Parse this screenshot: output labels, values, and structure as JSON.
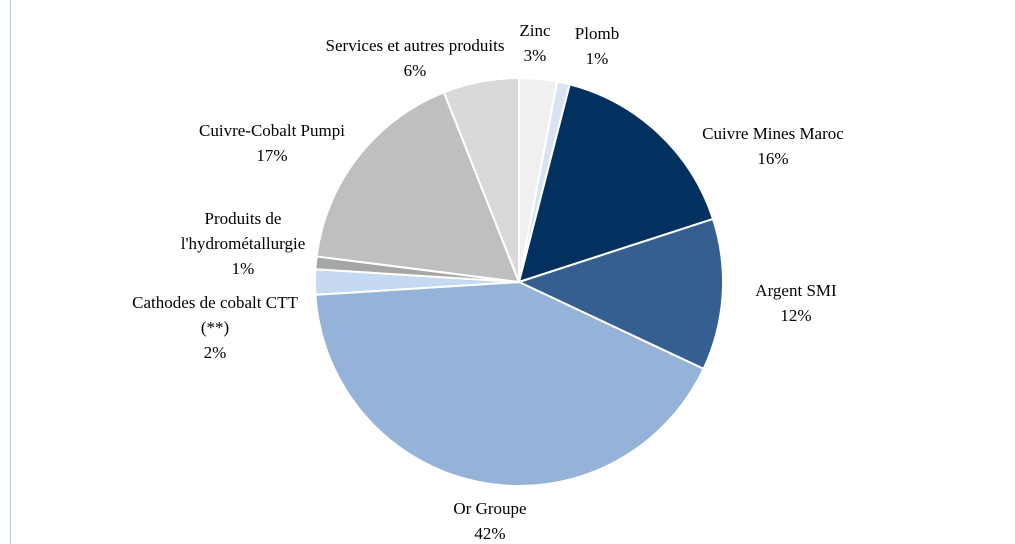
{
  "chart_data": {
    "type": "pie",
    "categories": [
      "Zinc",
      "Plomb",
      "Cuivre Mines Maroc",
      "Argent SMI",
      "Or Groupe",
      "Cathodes de cobalt CTT (**)",
      "Produits de l'hydrométallurgie",
      "Cuivre-Cobalt Pumpi",
      "Services et autres produits"
    ],
    "values": [
      3,
      1,
      16,
      12,
      42,
      2,
      1,
      17,
      6
    ],
    "value_labels": [
      "3%",
      "1%",
      "16%",
      "12%",
      "42%",
      "2%",
      "1%",
      "17%",
      "6%"
    ],
    "colors": [
      "#f0f0f0",
      "#dae3f3",
      "#03315f",
      "#355f91",
      "#95b3d9",
      "#c5d9f1",
      "#a6a6a6",
      "#bfbfbf",
      "#d9d9d9"
    ]
  }
}
